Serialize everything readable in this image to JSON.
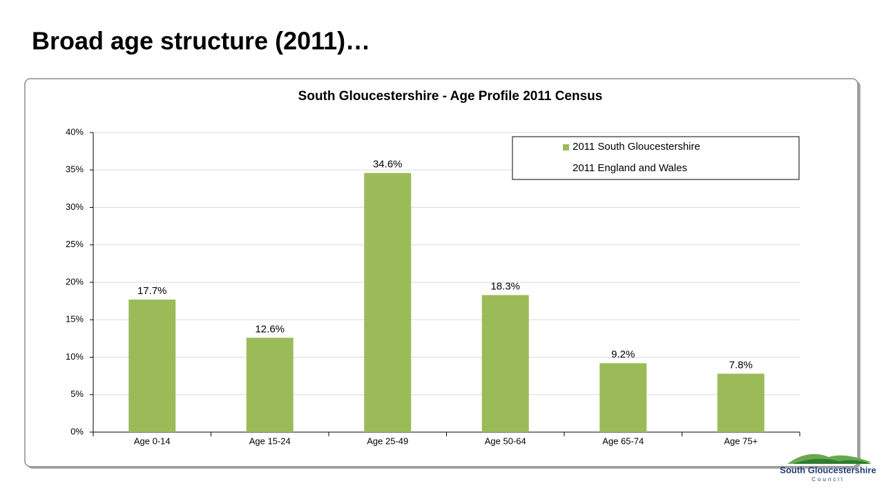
{
  "slide_title": "Broad age structure (2011)…",
  "logo": {
    "name": "South Gloucestershire",
    "subtitle": "Council"
  },
  "chart_data": {
    "type": "bar",
    "title": "South Gloucestershire - Age Profile 2011 Census",
    "categories": [
      "Age 0-14",
      "Age 15-24",
      "Age 25-49",
      "Age 50-64",
      "Age 65-74",
      "Age 75+"
    ],
    "series": [
      {
        "name": "2011 South Gloucestershire",
        "color": "#9bbb59",
        "values": [
          17.7,
          12.6,
          34.6,
          18.3,
          9.2,
          7.8
        ],
        "value_labels": [
          "17.7%",
          "12.6%",
          "34.6%",
          "18.3%",
          "9.2%",
          "7.8%"
        ]
      },
      {
        "name": "2011 England and Wales",
        "values": [
          null,
          null,
          null,
          null,
          null,
          null
        ]
      }
    ],
    "ylim": [
      0,
      40
    ],
    "yticks": [
      {
        "value": 0,
        "label": "0%"
      },
      {
        "value": 5,
        "label": "5%"
      },
      {
        "value": 10,
        "label": "10%"
      },
      {
        "value": 15,
        "label": "15%"
      },
      {
        "value": 20,
        "label": "20%"
      },
      {
        "value": 25,
        "label": "25%"
      },
      {
        "value": 30,
        "label": "30%"
      },
      {
        "value": 35,
        "label": "35%"
      },
      {
        "value": 40,
        "label": "40%"
      }
    ],
    "grid": true,
    "legend": "top-right"
  }
}
